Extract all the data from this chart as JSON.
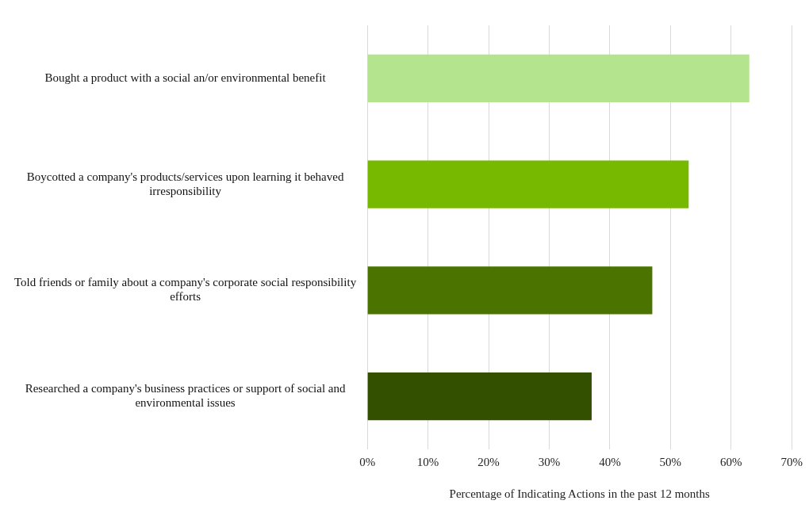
{
  "chart_data": {
    "type": "bar",
    "orientation": "horizontal",
    "categories": [
      "Bought a product with a social an/or environmental benefit",
      "Boycotted a company's products/services upon learning it behaved irresponsibility",
      "Told friends or family about a company's corporate social responsibility efforts",
      "Researched a company's business practices or support of social and environmental issues"
    ],
    "values": [
      63,
      53,
      47,
      37
    ],
    "colors": [
      "#b5e48f",
      "#77b900",
      "#4a7300",
      "#335000"
    ],
    "xlabel": "Percentage of Indicating Actions in the past 12 months",
    "xlim": [
      0,
      70
    ],
    "xticks": [
      {
        "value": 0,
        "label": "0%"
      },
      {
        "value": 10,
        "label": "10%"
      },
      {
        "value": 20,
        "label": "20%"
      },
      {
        "value": 30,
        "label": "30%"
      },
      {
        "value": 40,
        "label": "40%"
      },
      {
        "value": 50,
        "label": "50%"
      },
      {
        "value": 60,
        "label": "60%"
      },
      {
        "value": 70,
        "label": "70%"
      }
    ],
    "grid": "x"
  }
}
